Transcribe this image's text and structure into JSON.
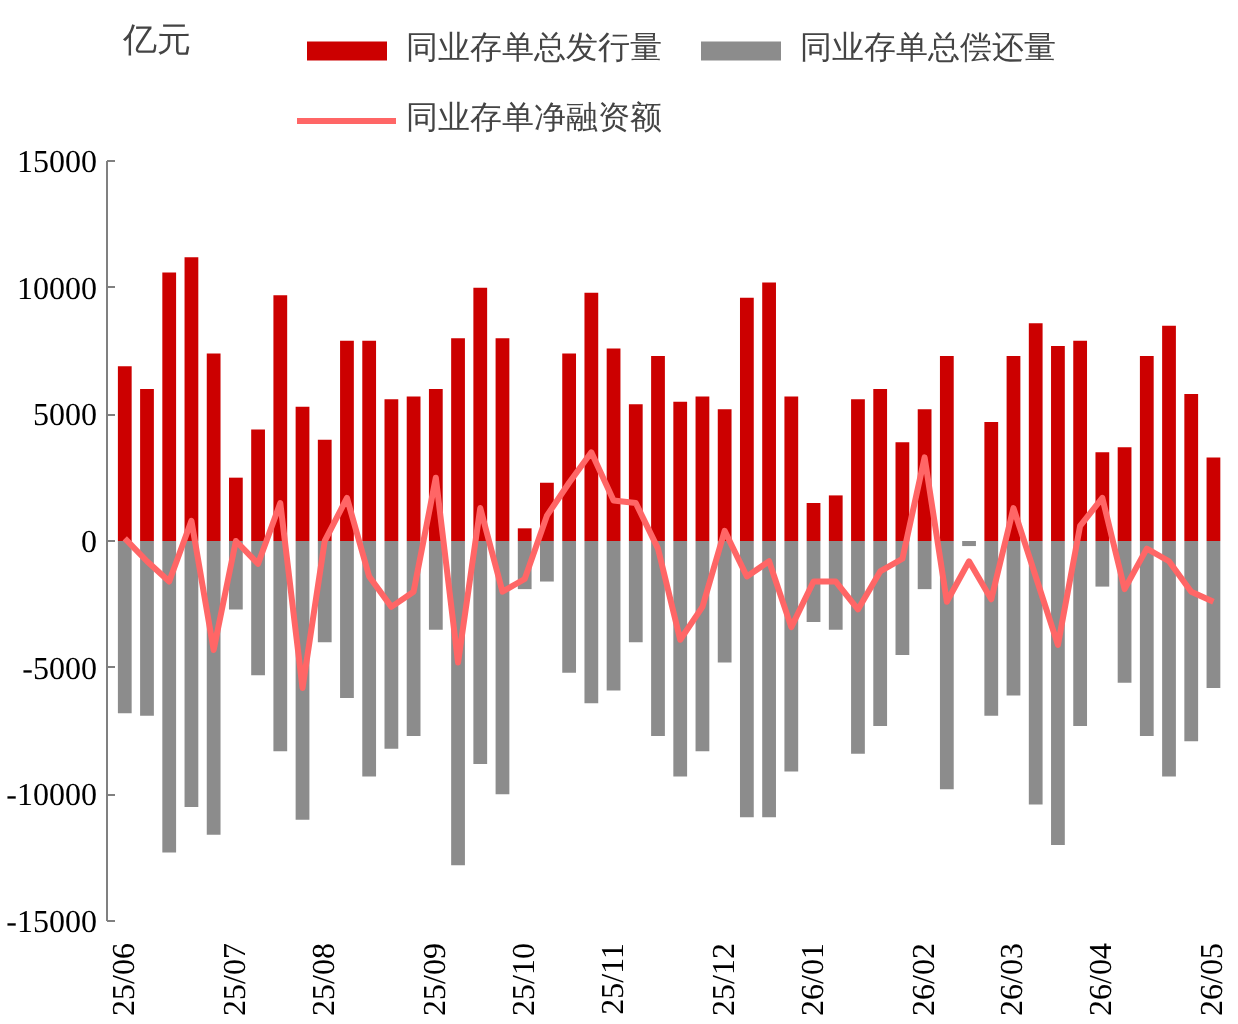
{
  "chart_data": {
    "type": "bar",
    "ylabel": "亿元",
    "categories": [
      "25/06",
      null,
      null,
      null,
      null,
      "25/07",
      null,
      null,
      null,
      "25/08",
      null,
      null,
      null,
      null,
      "25/09",
      null,
      null,
      null,
      "25/10",
      null,
      null,
      null,
      "25/11",
      null,
      null,
      null,
      null,
      "25/12",
      null,
      null,
      null,
      "26/01",
      null,
      null,
      null,
      null,
      "26/02",
      null,
      null,
      null,
      "26/03",
      null,
      null,
      null,
      "26/04",
      null,
      null,
      null,
      null,
      "26/05"
    ],
    "series": [
      {
        "name": "同业存单总发行量",
        "color": "#cc0000",
        "values": [
          6900,
          6000,
          10600,
          11200,
          7400,
          2500,
          4400,
          9700,
          5300,
          4000,
          7900,
          7900,
          5600,
          5700,
          6000,
          8000,
          10000,
          8000,
          500,
          2300,
          7400,
          9800,
          7600,
          5400,
          7300,
          5500,
          5700,
          5200,
          9600,
          10200,
          5700,
          1500,
          1800,
          5600,
          6000,
          3900,
          5200,
          7300,
          0,
          4700,
          7300,
          8600,
          7700,
          7900,
          3500,
          3700,
          7300,
          8500,
          5800,
          3300
        ]
      },
      {
        "name": "同业存单总偿还量",
        "color": "#8c8c8c",
        "values": [
          -6800,
          -6900,
          -12300,
          -10500,
          -11600,
          -2700,
          -5300,
          -8300,
          -11000,
          -4000,
          -6200,
          -9300,
          -8200,
          -7700,
          -3500,
          -12800,
          -8800,
          -10000,
          -1900,
          -1600,
          -5200,
          -6400,
          -5900,
          -4000,
          -7700,
          -9300,
          -8300,
          -4800,
          -10900,
          -10900,
          -9100,
          -3200,
          -3500,
          -8400,
          -7300,
          -4500,
          -1900,
          -9800,
          -200,
          -6900,
          -6100,
          -10400,
          -12000,
          -7300,
          -1800,
          -5600,
          -7700,
          -9300,
          -7900,
          -5800
        ]
      },
      {
        "name": "同业存单净融资额",
        "color": "#ff6666",
        "type": "line",
        "values": [
          100,
          -800,
          -1600,
          800,
          -4300,
          0,
          -900,
          1500,
          -5800,
          0,
          1700,
          -1400,
          -2600,
          -2000,
          2500,
          -4800,
          1300,
          -2000,
          -1500,
          1000,
          2300,
          3500,
          1600,
          1500,
          -300,
          -3900,
          -2600,
          400,
          -1400,
          -800,
          -3400,
          -1600,
          -1600,
          -2700,
          -1200,
          -700,
          3300,
          -2400,
          -800,
          -2300,
          1300,
          -1400,
          -4100,
          600,
          1700,
          -1900,
          -300,
          -800,
          -2000,
          -2400
        ]
      }
    ],
    "ylim": [
      -15000,
      15000
    ],
    "yticks": [
      -15000,
      -10000,
      -5000,
      0,
      5000,
      10000,
      15000
    ],
    "stacked": true,
    "grid": false,
    "legend": "top"
  }
}
